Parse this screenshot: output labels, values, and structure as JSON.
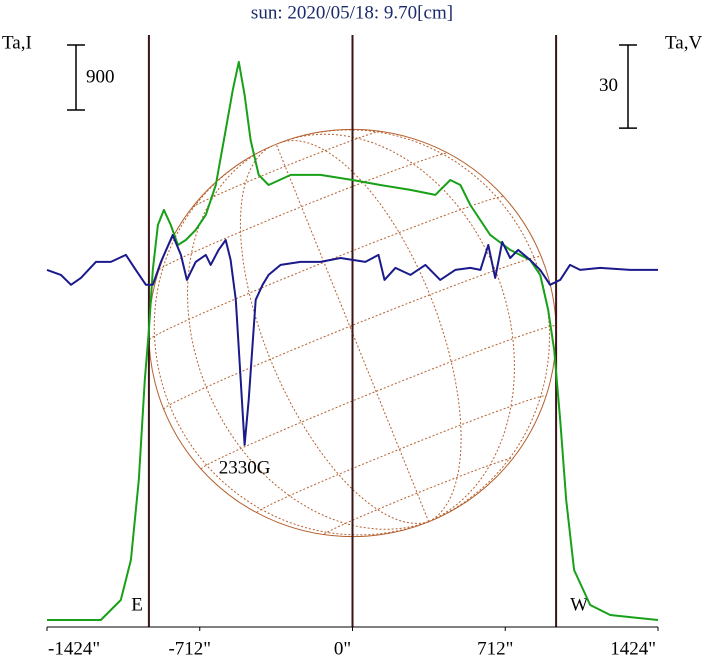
{
  "chart_data": {
    "type": "line",
    "title": "sun: 2020/05/18: 9.70[cm]",
    "xlim": [
      -1424,
      1424
    ],
    "xticks": [
      {
        "value": -1424,
        "label": "-1424\""
      },
      {
        "value": -712,
        "label": "-712\""
      },
      {
        "value": 0,
        "label": "0\""
      },
      {
        "value": 712,
        "label": "712\""
      },
      {
        "value": 1424,
        "label": "1424\""
      }
    ],
    "ylim": [
      0,
      8240
    ],
    "y2lim": [
      -128.2,
      86.6
    ],
    "vlines": [
      -949,
      0,
      949
    ],
    "vline_labels": [
      "E",
      null,
      "W"
    ],
    "annotations": [
      {
        "text": "2330G"
      }
    ],
    "series": [
      {
        "name": "Ta,I",
        "color": "#18a018",
        "scale_bar": 900,
        "x": [
          -1424,
          -1173,
          -1080,
          -1033,
          -996,
          -968,
          -949,
          -931,
          -907,
          -879,
          -847,
          -814,
          -777,
          -731,
          -684,
          -637,
          -591,
          -558,
          -530,
          -503,
          -475,
          -437,
          -391,
          -288,
          -149,
          0,
          130,
          270,
          386,
          456,
          503,
          549,
          642,
          735,
          828,
          875,
          912,
          940,
          968,
          996,
          1033,
          1108,
          1201,
          1424
        ],
        "values": [
          69,
          69,
          346,
          900,
          2008,
          3393,
          4086,
          4917,
          5540,
          5748,
          5540,
          5263,
          5332,
          5471,
          5679,
          6094,
          6856,
          7410,
          7798,
          7341,
          6717,
          6233,
          6094,
          6233,
          6233,
          6163,
          6094,
          6025,
          5956,
          6163,
          6094,
          5817,
          5402,
          5194,
          5055,
          4848,
          4363,
          3809,
          2839,
          1731,
          762,
          277,
          139,
          69
        ]
      },
      {
        "name": "Ta,V",
        "color": "#1a1a8c",
        "axis": "y2",
        "scale_bar": 30,
        "x": [
          -1424,
          -1359,
          -1312,
          -1266,
          -1196,
          -1126,
          -1056,
          -1010,
          -963,
          -931,
          -893,
          -838,
          -800,
          -772,
          -731,
          -684,
          -661,
          -624,
          -591,
          -568,
          -544,
          -521,
          -503,
          -484,
          -451,
          -419,
          -391,
          -335,
          -242,
          -149,
          -56,
          0,
          60,
          121,
          149,
          200,
          270,
          340,
          409,
          479,
          549,
          596,
          633,
          665,
          698,
          735,
          772,
          828,
          875,
          921,
          968,
          1014,
          1061,
          1154,
          1293,
          1424
        ],
        "values": [
          0,
          -1.8,
          -5.4,
          -2.9,
          2.9,
          2.9,
          5.4,
          0,
          -5.4,
          -5.4,
          2.9,
          12.6,
          5.4,
          -3.6,
          2.9,
          5.4,
          1.8,
          7.2,
          10.8,
          3.6,
          -10.8,
          -39.7,
          -63.2,
          -46.9,
          -10.8,
          -5.4,
          -1.8,
          1.8,
          2.9,
          2.9,
          4.3,
          3.6,
          2.9,
          5.4,
          -3.6,
          0.7,
          -1.8,
          1.8,
          -3.6,
          0,
          0.7,
          0,
          9.0,
          -2.9,
          10.1,
          4.3,
          7.2,
          3.6,
          0,
          -5.4,
          -3.6,
          1.8,
          0,
          0.7,
          0,
          0
        ]
      }
    ]
  }
}
